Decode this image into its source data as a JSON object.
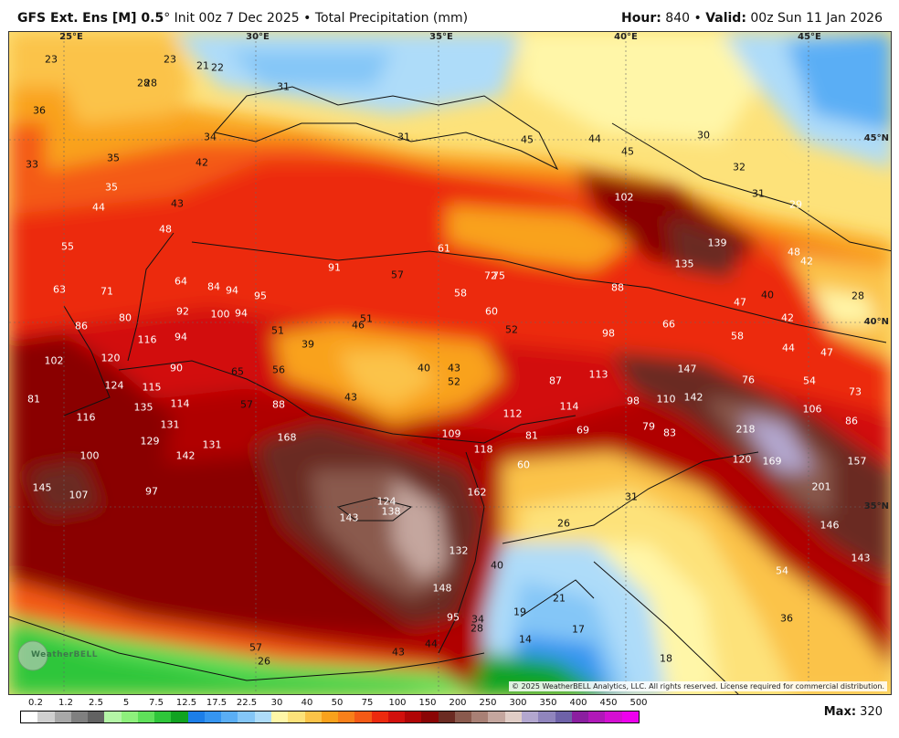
{
  "header": {
    "model": "GFS Ext.",
    "ens": "Ens [M] 0.5",
    "deg": "°",
    "init": "Init 00z 7 Dec 2025",
    "bullet": "•",
    "product": "Total Precipitation (mm)",
    "hour_label": "Hour:",
    "hour_value": "840",
    "valid_label": "Valid:",
    "valid_value": "00z Sun 11 Jan 2026"
  },
  "map": {
    "lon_labels": [
      "25°E",
      "30°E",
      "35°E",
      "40°E",
      "45°E"
    ],
    "lat_labels": [
      "45°N",
      "40°N",
      "35°N"
    ],
    "values": [
      "23",
      "22",
      "23",
      "28",
      "36",
      "28",
      "21",
      "31",
      "34",
      "33",
      "35",
      "42",
      "35",
      "44",
      "43",
      "48",
      "55",
      "31",
      "45",
      "44",
      "45",
      "30",
      "32",
      "102",
      "31",
      "29",
      "139",
      "135",
      "48",
      "42",
      "61",
      "91",
      "57",
      "72",
      "75",
      "58",
      "88",
      "60",
      "52",
      "47",
      "40",
      "28",
      "63",
      "71",
      "64",
      "84",
      "94",
      "95",
      "100",
      "94",
      "92",
      "80",
      "86",
      "51",
      "46",
      "51",
      "66",
      "98",
      "58",
      "42",
      "44",
      "47",
      "102",
      "116",
      "120",
      "94",
      "39",
      "40",
      "43",
      "52",
      "87",
      "113",
      "147",
      "76",
      "54",
      "73",
      "81",
      "124",
      "115",
      "90",
      "65",
      "56",
      "114",
      "57",
      "88",
      "43",
      "98",
      "110",
      "142",
      "106",
      "86",
      "116",
      "135",
      "131",
      "112",
      "114",
      "79",
      "83",
      "218",
      "129",
      "142",
      "131",
      "168",
      "109",
      "81",
      "69",
      "120",
      "169",
      "157",
      "100",
      "118",
      "60",
      "201",
      "145",
      "107",
      "97",
      "124",
      "138",
      "162",
      "31",
      "143",
      "26",
      "146",
      "143",
      "132",
      "40",
      "54",
      "148",
      "21",
      "19",
      "17",
      "36",
      "95",
      "34",
      "28",
      "14",
      "44",
      "57",
      "26",
      "43",
      "18"
    ],
    "copyright": "© 2025 WeatherBELL Analytics, LLC. All rights reserved. License required for commercial distribution.",
    "logo": "WeatherBELL"
  },
  "legend": {
    "ticks": [
      "0.2",
      "1.2",
      "2.5",
      "5",
      "7.5",
      "12.5",
      "17.5",
      "22.5",
      "30",
      "40",
      "50",
      "75",
      "100",
      "150",
      "200",
      "250",
      "300",
      "350",
      "400",
      "450",
      "500"
    ],
    "colors": [
      "#ffffff",
      "#cfcfcf",
      "#a8a8a8",
      "#808080",
      "#626262",
      "#b4f5a6",
      "#8ef07c",
      "#5fe05a",
      "#2fc63a",
      "#11a321",
      "#1c7ee8",
      "#3695f0",
      "#5aaef5",
      "#84c6f7",
      "#aedcf9",
      "#fff6a8",
      "#fde27a",
      "#fbc348",
      "#f9a21c",
      "#f8801a",
      "#f45a16",
      "#ec2a0e",
      "#d2100c",
      "#b00606",
      "#8a0505",
      "#6b2b22",
      "#8a5a4d",
      "#a88075",
      "#c4a69e",
      "#e0cdc6",
      "#b3a7cf",
      "#9085bd",
      "#6e62a8",
      "#8b1fa0",
      "#b018b8",
      "#d40fd2",
      "#ee00ee"
    ],
    "max_label": "Max:",
    "max_value": "320"
  }
}
